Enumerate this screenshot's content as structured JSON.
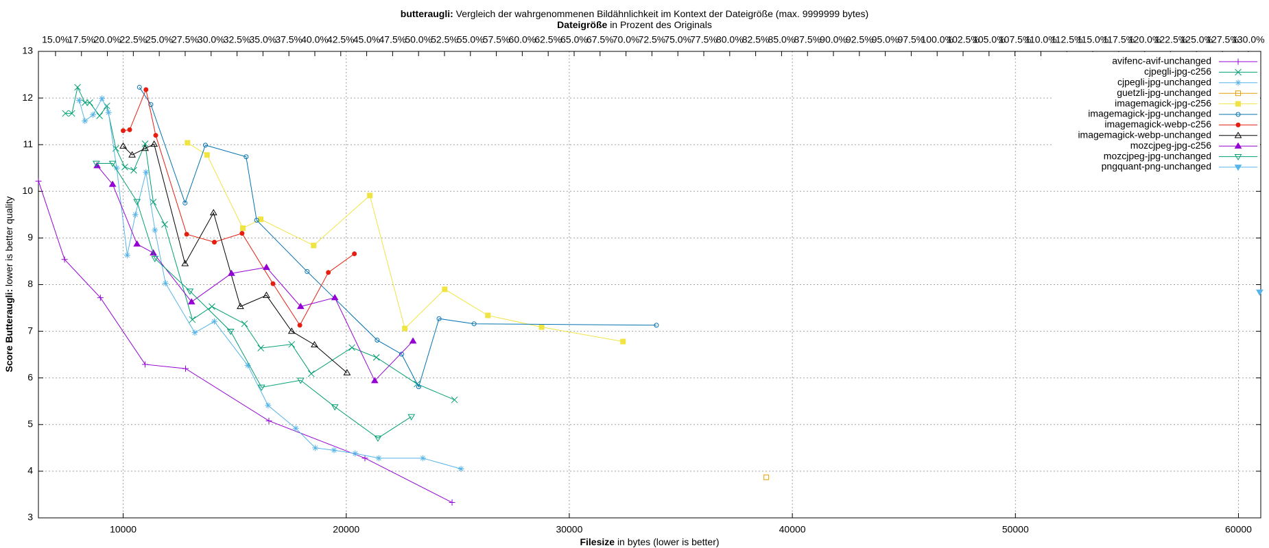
{
  "chart_data": {
    "type": "line",
    "title_bold": "butteraugli:",
    "title": "Vergleich der wahrgenommenen Bildähnlichkeit im Kontext der Dateigröße (max. 9999999 bytes)",
    "x2_label_bold": "Dateigröße",
    "x2_label": "in Prozent des Originals",
    "x_label_bold": "Filesize",
    "x_label": "in bytes (lower is better)",
    "y_label_bold": "Score Butteraugli:",
    "y_label": "lower is better quality",
    "xlim": [
      6200,
      61000
    ],
    "xticks": [
      10000,
      20000,
      30000,
      40000,
      50000,
      60000
    ],
    "x2lim": [
      13.35,
      131.2
    ],
    "x2ticks": [
      {
        "value": 15,
        "label": "15.0%"
      },
      {
        "value": 17.5,
        "label": "17.5%"
      },
      {
        "value": 20,
        "label": "20.0%"
      },
      {
        "value": 22.5,
        "label": "22.5%"
      },
      {
        "value": 25,
        "label": "25.0%"
      },
      {
        "value": 27.5,
        "label": "27.5%"
      },
      {
        "value": 30,
        "label": "30.0%"
      },
      {
        "value": 32.5,
        "label": "32.5%"
      },
      {
        "value": 35,
        "label": "35.0%"
      },
      {
        "value": 37.5,
        "label": "37.5%"
      },
      {
        "value": 40,
        "label": "40.0%"
      },
      {
        "value": 42.5,
        "label": "42.5%"
      },
      {
        "value": 45,
        "label": "45.0%"
      },
      {
        "value": 47.5,
        "label": "47.5%"
      },
      {
        "value": 50,
        "label": "50.0%"
      },
      {
        "value": 52.5,
        "label": "52.5%"
      },
      {
        "value": 55,
        "label": "55.0%"
      },
      {
        "value": 57.5,
        "label": "57.5%"
      },
      {
        "value": 60,
        "label": "60.0%"
      },
      {
        "value": 62.5,
        "label": "62.5%"
      },
      {
        "value": 65,
        "label": "65.0%"
      },
      {
        "value": 67.5,
        "label": "67.5%"
      },
      {
        "value": 70,
        "label": "70.0%"
      },
      {
        "value": 72.5,
        "label": "72.5%"
      },
      {
        "value": 75,
        "label": "75.0%"
      },
      {
        "value": 77.5,
        "label": "77.5%"
      },
      {
        "value": 80,
        "label": "80.0%"
      },
      {
        "value": 82.5,
        "label": "82.5%"
      },
      {
        "value": 85,
        "label": "85.0%"
      },
      {
        "value": 87.5,
        "label": "87.5%"
      },
      {
        "value": 90,
        "label": "90.0%"
      },
      {
        "value": 92.5,
        "label": "92.5%"
      },
      {
        "value": 95,
        "label": "95.0%"
      },
      {
        "value": 97.5,
        "label": "97.5%"
      },
      {
        "value": 100,
        "label": "100.0%"
      },
      {
        "value": 102.5,
        "label": "102.5%"
      },
      {
        "value": 105,
        "label": "105.0%"
      },
      {
        "value": 107.5,
        "label": "107.5%"
      },
      {
        "value": 110,
        "label": "110.0%"
      },
      {
        "value": 112.5,
        "label": "112.5%"
      },
      {
        "value": 115,
        "label": "115.0%"
      },
      {
        "value": 117.5,
        "label": "117.5%"
      },
      {
        "value": 120,
        "label": "120.0%"
      },
      {
        "value": 122.5,
        "label": "122.5%"
      },
      {
        "value": 125,
        "label": "125.0%"
      },
      {
        "value": 127.5,
        "label": "127.5%"
      },
      {
        "value": 130,
        "label": "130.0%"
      }
    ],
    "ylim": [
      3,
      13
    ],
    "yticks": [
      3,
      4,
      5,
      6,
      7,
      8,
      9,
      10,
      11,
      12,
      13
    ],
    "grid": true,
    "legend": "top-right",
    "series": [
      {
        "name": "avifenc-avif-unchanged",
        "color": "#9400d3",
        "marker": "plus",
        "x": [
          6204,
          7372,
          8978,
          10985,
          12796,
          16533,
          20839,
          24745
        ],
        "values": [
          10.22,
          8.54,
          7.72,
          6.29,
          6.2,
          5.08,
          4.28,
          3.33
        ]
      },
      {
        "name": "cjpegli-jpg-c256",
        "color": "#009e73",
        "marker": "cross",
        "x": [
          7409,
          7701,
          7956,
          8285,
          8504,
          8942,
          9270,
          9672,
          10073,
          10474,
          10985,
          11350,
          11861,
          13102,
          13978,
          15438,
          16168,
          17555,
          18431,
          20255,
          21350,
          23175,
          24854
        ],
        "values": [
          11.67,
          11.67,
          12.23,
          11.9,
          11.9,
          11.62,
          11.83,
          10.92,
          10.52,
          10.45,
          11.02,
          9.77,
          9.29,
          7.25,
          7.53,
          7.16,
          6.64,
          6.72,
          6.09,
          6.65,
          6.44,
          5.87,
          5.53
        ]
      },
      {
        "name": "cjpegli-jpg-unchanged",
        "color": "#56b4e9",
        "marker": "star",
        "x": [
          8029,
          8285,
          8650,
          9051,
          9343,
          9708,
          10182,
          10547,
          11022,
          11423,
          11898,
          13212,
          14088,
          15584,
          16496,
          17737,
          18613,
          19453,
          20401,
          21460,
          23431,
          25146
        ],
        "values": [
          11.95,
          11.51,
          11.64,
          11.99,
          11.69,
          10.5,
          8.63,
          9.5,
          10.41,
          9.17,
          8.03,
          6.97,
          7.21,
          6.27,
          5.41,
          4.92,
          4.5,
          4.45,
          4.38,
          4.28,
          4.28,
          4.05
        ]
      },
      {
        "name": "guetzli-jpg-unchanged",
        "color": "#e69f00",
        "marker": "square-open",
        "x": [
          38832
        ],
        "values": [
          3.87
        ]
      },
      {
        "name": "imagemagick-jpg-c256",
        "color": "#f0e442",
        "marker": "square",
        "x": [
          12883,
          13759,
          15365,
          16168,
          18540,
          21058,
          22628,
          24416,
          26350,
          28759,
          32409
        ],
        "values": [
          11.04,
          10.78,
          9.21,
          9.4,
          8.84,
          9.91,
          7.06,
          7.9,
          7.34,
          7.09,
          6.78
        ]
      },
      {
        "name": "imagemagick-jpg-unchanged",
        "color": "#0072b2",
        "marker": "circle-open",
        "x": [
          10730,
          11241,
          12774,
          13686,
          15511,
          15985,
          18248,
          21387,
          22482,
          23248,
          24161,
          25730,
          33905
        ],
        "values": [
          12.23,
          11.86,
          9.75,
          10.99,
          10.74,
          9.38,
          8.28,
          6.81,
          6.51,
          5.81,
          7.27,
          7.16,
          7.13
        ]
      },
      {
        "name": "imagemagick-webp-c256",
        "color": "#e51e10",
        "marker": "circle",
        "x": [
          10000,
          10292,
          11022,
          11460,
          12847,
          14088,
          15329,
          16715,
          17920,
          19197,
          20365
        ],
        "values": [
          11.3,
          11.32,
          12.18,
          11.2,
          9.08,
          8.91,
          9.1,
          8.02,
          7.13,
          8.26,
          8.66
        ]
      },
      {
        "name": "imagemagick-webp-unchanged",
        "color": "#000000",
        "marker": "triangle-open",
        "x": [
          10000,
          10401,
          10985,
          11387,
          12774,
          14051,
          15255,
          16423,
          17555,
          18577,
          20036
        ],
        "values": [
          10.97,
          10.78,
          10.92,
          11.01,
          8.45,
          9.54,
          7.53,
          7.77,
          7.0,
          6.71,
          6.11
        ]
      },
      {
        "name": "mozcjpeg-jpg-c256",
        "color": "#9400d3",
        "marker": "triangle",
        "x": [
          8832,
          9526,
          10620,
          11350,
          13066,
          14854,
          16423,
          17956,
          19489,
          21277,
          22993
        ],
        "values": [
          10.55,
          10.15,
          8.87,
          8.68,
          7.63,
          8.24,
          8.37,
          7.53,
          7.72,
          5.94,
          6.79
        ]
      },
      {
        "name": "mozcjpeg-jpg-unchanged",
        "color": "#009e73",
        "marker": "triangle-down-open",
        "x": [
          8796,
          9526,
          10620,
          11423,
          12993,
          14818,
          16204,
          17956,
          19489,
          21423,
          22920
        ],
        "values": [
          10.6,
          10.6,
          9.78,
          8.56,
          7.86,
          7.0,
          5.8,
          5.95,
          5.38,
          4.71,
          5.17
        ]
      },
      {
        "name": "pngquant-png-unchanged",
        "color": "#56b4e9",
        "marker": "triangle-down",
        "x": [
          60950
        ],
        "values": [
          7.84
        ]
      }
    ]
  }
}
